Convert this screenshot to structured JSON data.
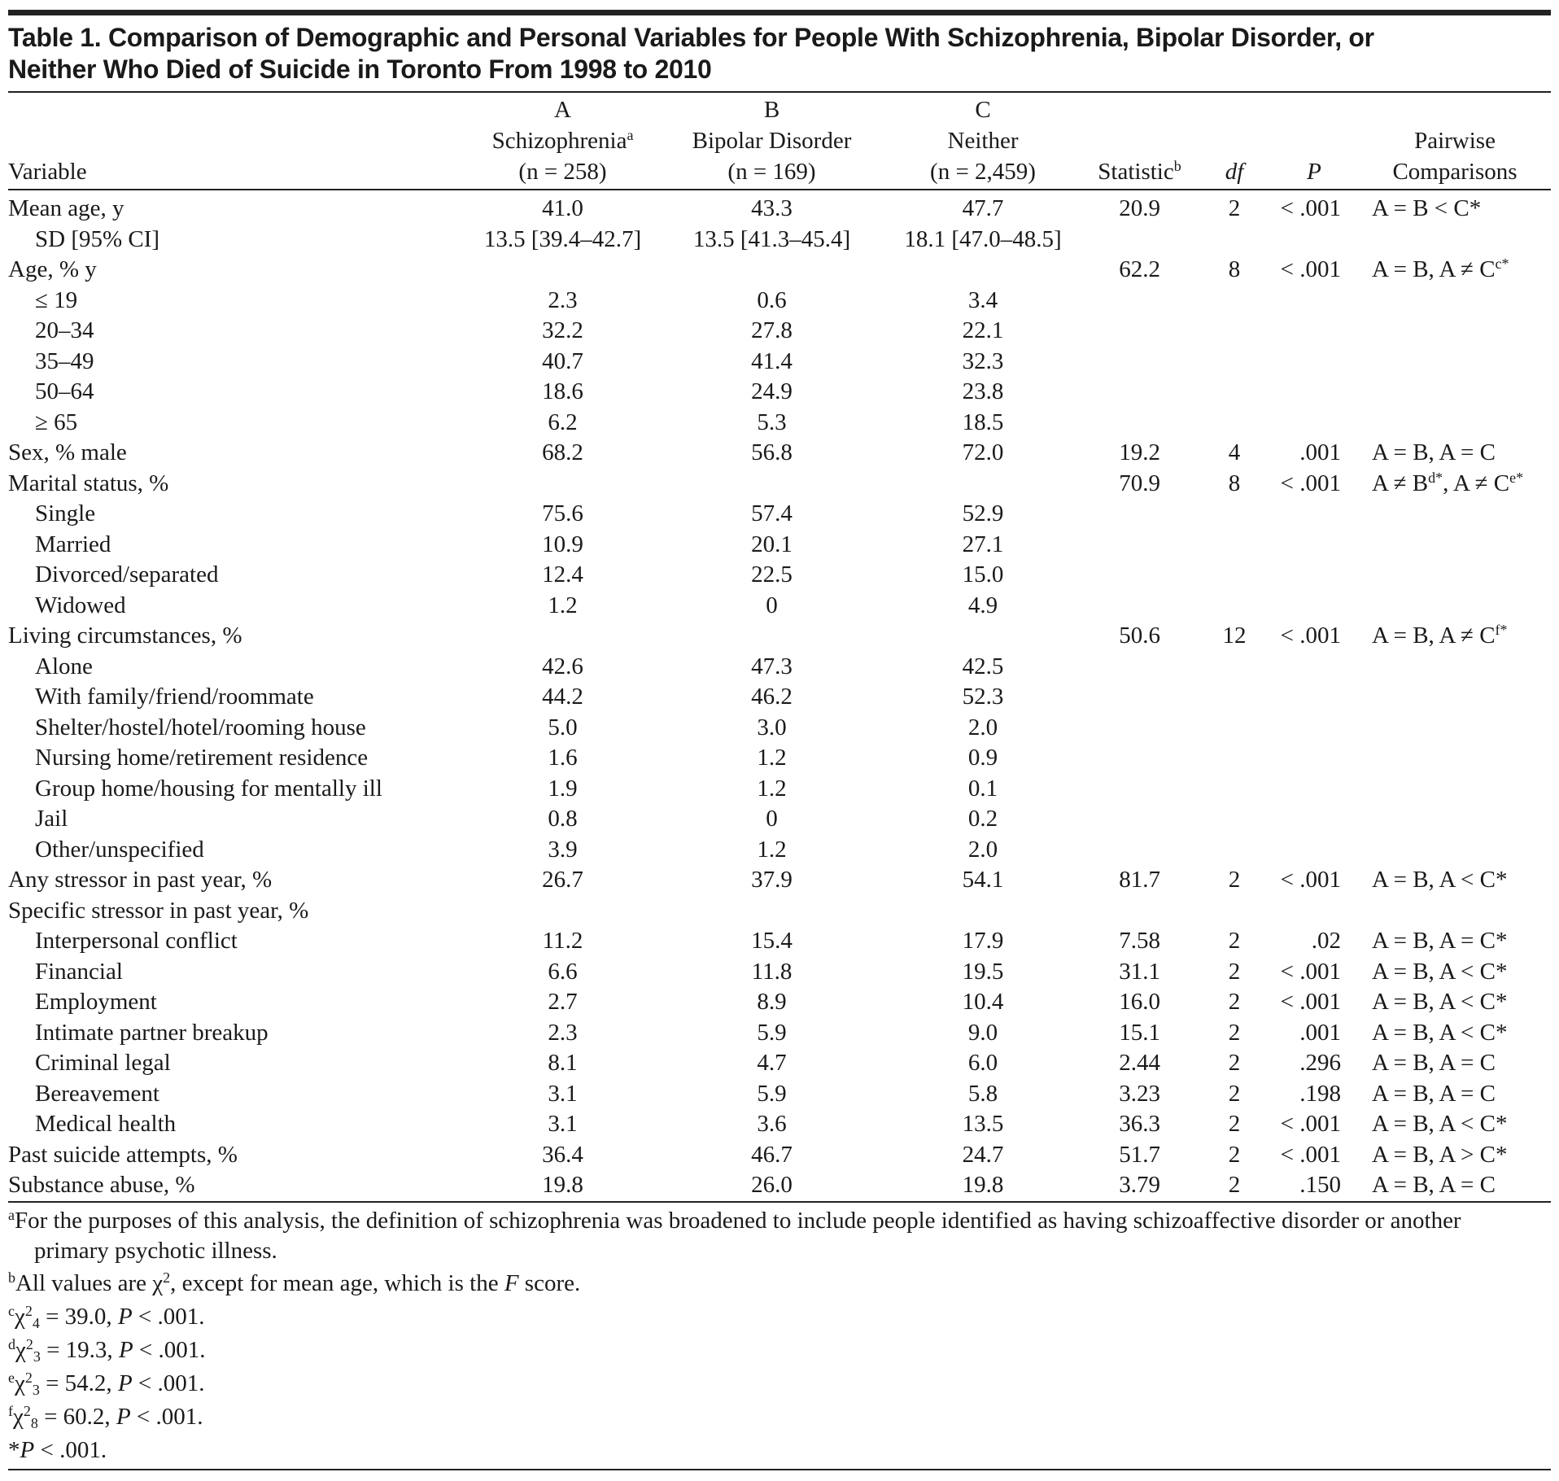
{
  "title": [
    "Table 1. Comparison of Demographic and Personal Variables for People With Schizophrenia, Bipolar Disorder, or",
    "Neither Who Died of Suicide in Toronto From 1998 to 2010"
  ],
  "header": [
    [
      "Variable"
    ],
    [
      "A",
      [
        "Schizophrenia",
        {
          "sup": "a"
        }
      ],
      "(n = 258)"
    ],
    [
      "B",
      "Bipolar Disorder",
      "(n = 169)"
    ],
    [
      "C",
      "Neither",
      "(n = 2,459)"
    ],
    [
      [
        "Statistic",
        {
          "sup": "b"
        }
      ]
    ],
    [
      [
        {
          "i": "df"
        }
      ]
    ],
    [
      [
        {
          "i": "P"
        }
      ]
    ],
    [
      "Pairwise",
      "Comparisons"
    ]
  ],
  "rows": [
    {
      "cells": [
        "Mean age, y",
        "41.0",
        "43.3",
        "47.7",
        "20.9",
        "2",
        "< .001",
        "A = B < C*"
      ]
    },
    {
      "cells": [
        "SD [95% CI]",
        "13.5 [39.4–42.7]",
        "13.5 [41.3–45.4]",
        "18.1 [47.0–48.5]",
        null,
        null,
        null,
        null
      ],
      "indent": true
    },
    {
      "cells": [
        "Age, % y",
        null,
        null,
        null,
        "62.2",
        "8",
        "< .001",
        [
          "A = B, A ≠ C",
          {
            "sup": "c*"
          }
        ]
      ]
    },
    {
      "cells": [
        "≤ 19",
        "2.3",
        "0.6",
        "3.4",
        null,
        null,
        null,
        null
      ],
      "indent": true
    },
    {
      "cells": [
        "20–34",
        "32.2",
        "27.8",
        "22.1",
        null,
        null,
        null,
        null
      ],
      "indent": true
    },
    {
      "cells": [
        "35–49",
        "40.7",
        "41.4",
        "32.3",
        null,
        null,
        null,
        null
      ],
      "indent": true
    },
    {
      "cells": [
        "50–64",
        "18.6",
        "24.9",
        "23.8",
        null,
        null,
        null,
        null
      ],
      "indent": true
    },
    {
      "cells": [
        "≥ 65",
        "6.2",
        "5.3",
        "18.5",
        null,
        null,
        null,
        null
      ],
      "indent": true
    },
    {
      "cells": [
        "Sex, % male",
        "68.2",
        "56.8",
        "72.0",
        "19.2",
        "4",
        ".001",
        "A = B, A = C"
      ]
    },
    {
      "cells": [
        "Marital status, %",
        null,
        null,
        null,
        "70.9",
        "8",
        "< .001",
        [
          "A ≠ B",
          {
            "sup": "d*"
          },
          ", A ≠ C",
          {
            "sup": "e*"
          }
        ]
      ]
    },
    {
      "cells": [
        "Single",
        "75.6",
        "57.4",
        "52.9",
        null,
        null,
        null,
        null
      ],
      "indent": true
    },
    {
      "cells": [
        "Married",
        "10.9",
        "20.1",
        "27.1",
        null,
        null,
        null,
        null
      ],
      "indent": true
    },
    {
      "cells": [
        "Divorced/separated",
        "12.4",
        "22.5",
        "15.0",
        null,
        null,
        null,
        null
      ],
      "indent": true
    },
    {
      "cells": [
        "Widowed",
        "1.2",
        "0",
        "4.9",
        null,
        null,
        null,
        null
      ],
      "indent": true
    },
    {
      "cells": [
        "Living circumstances, %",
        null,
        null,
        null,
        "50.6",
        "12",
        "< .001",
        [
          "A = B, A ≠ C",
          {
            "sup": "f*"
          }
        ]
      ]
    },
    {
      "cells": [
        "Alone",
        "42.6",
        "47.3",
        "42.5",
        null,
        null,
        null,
        null
      ],
      "indent": true
    },
    {
      "cells": [
        "With family/friend/roommate",
        "44.2",
        "46.2",
        "52.3",
        null,
        null,
        null,
        null
      ],
      "indent": true
    },
    {
      "cells": [
        "Shelter/hostel/hotel/rooming house",
        "5.0",
        "3.0",
        "2.0",
        null,
        null,
        null,
        null
      ],
      "indent": true
    },
    {
      "cells": [
        "Nursing home/retirement residence",
        "1.6",
        "1.2",
        "0.9",
        null,
        null,
        null,
        null
      ],
      "indent": true
    },
    {
      "cells": [
        "Group home/housing for mentally ill",
        "1.9",
        "1.2",
        "0.1",
        null,
        null,
        null,
        null
      ],
      "indent": true
    },
    {
      "cells": [
        "Jail",
        "0.8",
        "0",
        "0.2",
        null,
        null,
        null,
        null
      ],
      "indent": true
    },
    {
      "cells": [
        "Other/unspecified",
        "3.9",
        "1.2",
        "2.0",
        null,
        null,
        null,
        null
      ],
      "indent": true
    },
    {
      "cells": [
        "Any stressor in past year, %",
        "26.7",
        "37.9",
        "54.1",
        "81.7",
        "2",
        "< .001",
        "A = B, A < C*"
      ]
    },
    {
      "cells": [
        "Specific stressor in past year, %",
        null,
        null,
        null,
        null,
        null,
        null,
        null
      ]
    },
    {
      "cells": [
        "Interpersonal conflict",
        "11.2",
        "15.4",
        "17.9",
        "7.58",
        "2",
        ".02",
        "A = B, A = C*"
      ],
      "indent": true
    },
    {
      "cells": [
        "Financial",
        "6.6",
        "11.8",
        "19.5",
        "31.1",
        "2",
        "< .001",
        "A = B, A < C*"
      ],
      "indent": true
    },
    {
      "cells": [
        "Employment",
        "2.7",
        "8.9",
        "10.4",
        "16.0",
        "2",
        "< .001",
        "A = B, A < C*"
      ],
      "indent": true
    },
    {
      "cells": [
        "Intimate partner breakup",
        "2.3",
        "5.9",
        "9.0",
        "15.1",
        "2",
        ".001",
        "A = B, A < C*"
      ],
      "indent": true
    },
    {
      "cells": [
        "Criminal legal",
        "8.1",
        "4.7",
        "6.0",
        "2.44",
        "2",
        ".296",
        "A = B, A = C"
      ],
      "indent": true
    },
    {
      "cells": [
        "Bereavement",
        "3.1",
        "5.9",
        "5.8",
        "3.23",
        "2",
        ".198",
        "A = B, A = C"
      ],
      "indent": true
    },
    {
      "cells": [
        "Medical health",
        "3.1",
        "3.6",
        "13.5",
        "36.3",
        "2",
        "< .001",
        "A = B, A < C*"
      ],
      "indent": true
    },
    {
      "cells": [
        "Past suicide attempts, %",
        "36.4",
        "46.7",
        "24.7",
        "51.7",
        "2",
        "< .001",
        "A = B, A > C*"
      ]
    },
    {
      "cells": [
        "Substance abuse, %",
        "19.8",
        "26.0",
        "19.8",
        "3.79",
        "2",
        ".150",
        "A = B, A = C"
      ]
    }
  ],
  "footnotes": [
    [
      {
        "sup": "a"
      },
      "For the purposes of this analysis, the definition of schizophrenia was broadened to include people identified as having schizoaffective disorder or another primary psychotic illness."
    ],
    [
      {
        "sup": "b"
      },
      "All values are χ",
      {
        "sup": "2"
      },
      ", except for mean age, which is the ",
      {
        "i": "F"
      },
      " score."
    ],
    [
      {
        "sup": "c"
      },
      "χ",
      {
        "sup": "2"
      },
      {
        "sub": "4"
      },
      " = 39.0, ",
      {
        "i": "P"
      },
      " < .001."
    ],
    [
      {
        "sup": "d"
      },
      "χ",
      {
        "sup": "2"
      },
      {
        "sub": "3"
      },
      " = 19.3, ",
      {
        "i": "P"
      },
      " < .001."
    ],
    [
      {
        "sup": "e"
      },
      "χ",
      {
        "sup": "2"
      },
      {
        "sub": "3"
      },
      " = 54.2, ",
      {
        "i": "P"
      },
      " < .001."
    ],
    [
      {
        "sup": "f"
      },
      "χ",
      {
        "sup": "2"
      },
      {
        "sub": "8"
      },
      " = 60.2, ",
      {
        "i": "P"
      },
      " < .001."
    ],
    [
      "*",
      {
        "i": "P"
      },
      " < .001."
    ]
  ]
}
